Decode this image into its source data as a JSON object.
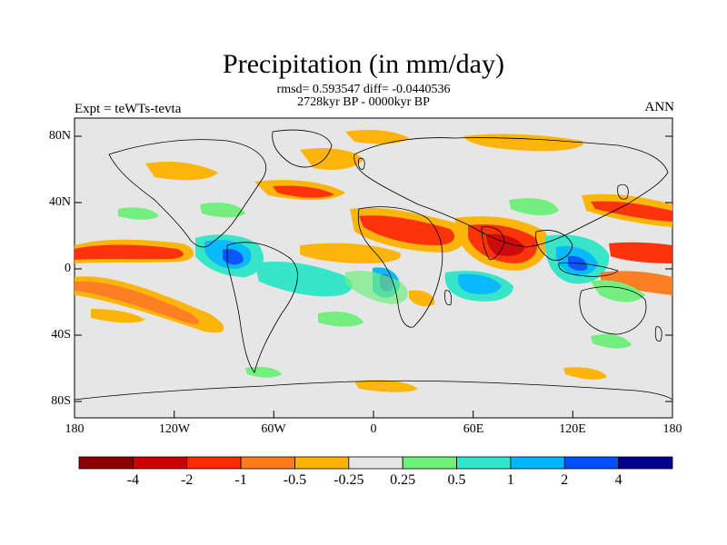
{
  "title": "Precipitation (in mm/day)",
  "stats_line": "rmsd= 0.593547 diff= -0.0440536",
  "period_line": "2728kyr BP - 0000kyr BP",
  "experiment": "Expt = teWTs-tevta",
  "season": "ANN",
  "lat_labels": [
    "80N",
    "40N",
    "0",
    "40S",
    "80S"
  ],
  "lon_labels": [
    "180",
    "120W",
    "60W",
    "0",
    "60E",
    "120E",
    "180"
  ],
  "colorbar": {
    "labels": [
      "-4",
      "-2",
      "-1",
      "-0.5",
      "-0.25",
      "0.25",
      "0.5",
      "1",
      "2",
      "4"
    ],
    "colors": [
      "#8b0000",
      "#cc0000",
      "#ff2a00",
      "#ff7a1a",
      "#ffb300",
      "#e6e6e6",
      "#6ef07a",
      "#2ee6c8",
      "#00b7ff",
      "#0050ff",
      "#00008b"
    ]
  },
  "colors": {
    "ocean_land_bg": "#e6e6e6",
    "coast": "#000000"
  }
}
